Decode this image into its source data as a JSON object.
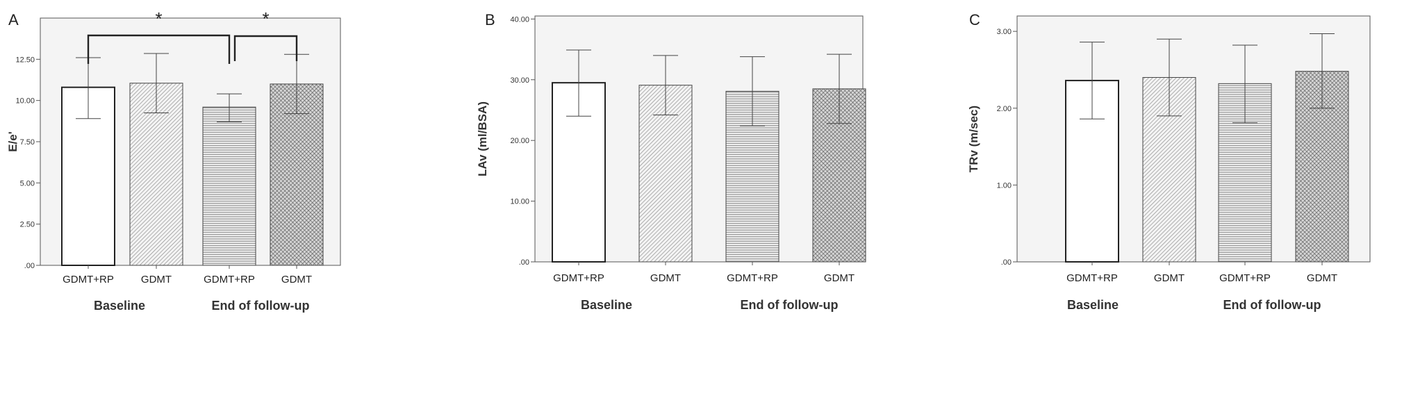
{
  "chart_data": [
    {
      "type": "bar",
      "panel": "A",
      "ylabel": "E/e'",
      "ylim": [
        0,
        15
      ],
      "yticks": [
        ".00",
        "2.50",
        "5.00",
        "7.50",
        "10.00",
        "12.50"
      ],
      "ytick_values": [
        0,
        2.5,
        5,
        7.5,
        10,
        12.5
      ],
      "categories": [
        "GDMT+RP",
        "GDMT",
        "GDMT+RP",
        "GDMT"
      ],
      "groups": [
        "Baseline",
        "End of follow-up"
      ],
      "values": [
        10.8,
        11.05,
        9.6,
        11.0
      ],
      "error_low": [
        8.9,
        9.25,
        8.7,
        9.2
      ],
      "error_high": [
        12.6,
        12.85,
        10.4,
        12.8
      ],
      "patterns": [
        "none",
        "diagonal",
        "horizontal",
        "crosshatch"
      ],
      "significance": [
        {
          "from": 0,
          "to": 2,
          "label": "*"
        },
        {
          "from": 2,
          "to": 3,
          "label": "*"
        }
      ]
    },
    {
      "type": "bar",
      "panel": "B",
      "ylabel": "LAv (ml/BSA)",
      "ylim": [
        0,
        40.5
      ],
      "yticks": [
        ".00",
        "10.00",
        "20.00",
        "30.00",
        "40.00"
      ],
      "ytick_values": [
        0,
        10,
        20,
        30,
        40
      ],
      "categories": [
        "GDMT+RP",
        "GDMT",
        "GDMT+RP",
        "GDMT"
      ],
      "groups": [
        "Baseline",
        "End of follow-up"
      ],
      "values": [
        29.5,
        29.1,
        28.1,
        28.5
      ],
      "error_low": [
        24.0,
        24.2,
        22.4,
        22.8
      ],
      "error_high": [
        34.9,
        34.0,
        33.8,
        34.2
      ],
      "patterns": [
        "none",
        "diagonal",
        "horizontal",
        "crosshatch"
      ]
    },
    {
      "type": "bar",
      "panel": "C",
      "ylabel": "TRv (m/sec)",
      "ylim": [
        0,
        3.2
      ],
      "yticks": [
        ".00",
        "1.00",
        "2.00",
        "3.00"
      ],
      "ytick_values": [
        0,
        1,
        2,
        3
      ],
      "categories": [
        "GDMT+RP",
        "GDMT",
        "GDMT+RP",
        "GDMT"
      ],
      "groups": [
        "Baseline",
        "End of follow-up"
      ],
      "values": [
        2.36,
        2.4,
        2.32,
        2.48
      ],
      "error_low": [
        1.86,
        1.9,
        1.81,
        2.0
      ],
      "error_high": [
        2.86,
        2.9,
        2.82,
        2.97
      ],
      "patterns": [
        "none",
        "diagonal",
        "horizontal",
        "crosshatch"
      ]
    }
  ]
}
